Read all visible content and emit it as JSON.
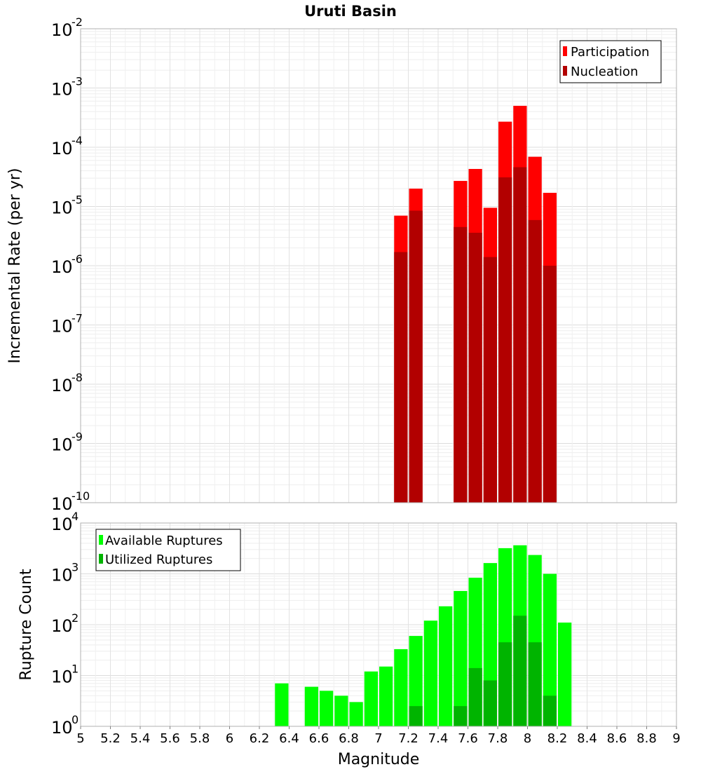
{
  "chart_data": [
    {
      "type": "bar",
      "title": "Uruti Basin",
      "xlabel": "",
      "ylabel": "Incremental Rate (per yr)",
      "yscale": "log",
      "ylim_exp": [
        -10,
        -2
      ],
      "xlim": [
        5,
        9
      ],
      "bin_width": 0.1,
      "legend": "top-right",
      "series": [
        {
          "name": "Participation",
          "color": "#ff0000",
          "x": [
            7.15,
            7.25,
            7.55,
            7.65,
            7.75,
            7.85,
            7.95,
            8.05,
            8.15
          ],
          "values": [
            7e-06,
            2e-05,
            2.7e-05,
            4.3e-05,
            9.5e-06,
            0.00027,
            0.0005,
            6.9e-05,
            1.7e-05
          ]
        },
        {
          "name": "Nucleation",
          "color": "#b20000",
          "x": [
            7.15,
            7.25,
            7.55,
            7.65,
            7.75,
            7.85,
            7.95,
            8.05,
            8.15
          ],
          "values": [
            1.7e-06,
            8.5e-06,
            4.5e-06,
            3.6e-06,
            1.4e-06,
            3.1e-05,
            4.6e-05,
            5.9e-06,
            1e-06
          ]
        }
      ]
    },
    {
      "type": "bar",
      "title": "",
      "xlabel": "Magnitude",
      "ylabel": "Rupture Count",
      "yscale": "log",
      "ylim_exp": [
        0,
        4
      ],
      "xlim": [
        5,
        9
      ],
      "bin_width": 0.1,
      "legend": "top-left",
      "xticks": [
        "5",
        "5.2",
        "5.4",
        "5.6",
        "5.8",
        "6",
        "6.2",
        "6.4",
        "6.6",
        "6.8",
        "7",
        "7.2",
        "7.4",
        "7.6",
        "7.8",
        "8",
        "8.2",
        "8.4",
        "8.6",
        "8.8",
        "9"
      ],
      "series": [
        {
          "name": "Available Ruptures",
          "color": "#00ff00",
          "x": [
            6.35,
            6.55,
            6.65,
            6.75,
            6.85,
            6.95,
            7.05,
            7.15,
            7.25,
            7.35,
            7.45,
            7.55,
            7.65,
            7.75,
            7.85,
            7.95,
            8.05,
            8.15,
            8.25
          ],
          "values": [
            7,
            6,
            5,
            4,
            3,
            12,
            15,
            33,
            60,
            120,
            230,
            460,
            840,
            1630,
            3200,
            3650,
            2350,
            1000,
            110
          ]
        },
        {
          "name": "Utilized Ruptures",
          "color": "#00b400",
          "x": [
            7.15,
            7.25,
            7.55,
            7.65,
            7.75,
            7.85,
            7.95,
            8.05,
            8.15
          ],
          "values": [
            1,
            2.5,
            2.5,
            14,
            8,
            45,
            150,
            45,
            4
          ]
        }
      ]
    }
  ]
}
